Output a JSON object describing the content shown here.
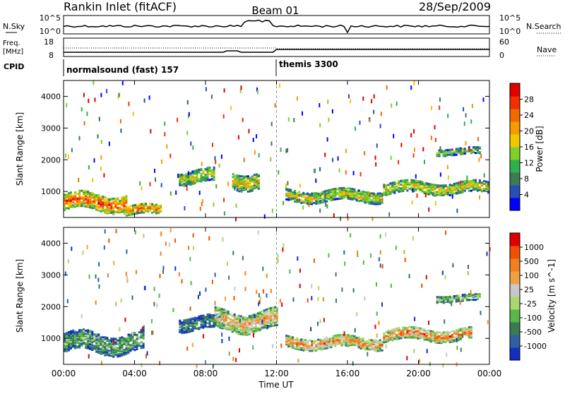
{
  "header": {
    "title": "Rankin Inlet (fitACF)",
    "beam": "Beam 01",
    "date": "28/Sep/2009"
  },
  "noise_panel": {
    "left_label": "N.Sky",
    "right_label": "N.Search",
    "left_ticks": [
      "10^5",
      "10^0"
    ],
    "right_ticks": [
      "10^5",
      "10^0"
    ]
  },
  "freq_panel": {
    "left_label_line1": "Freq.",
    "left_label_line2": "[MHz]",
    "right_label": "Nave",
    "left_ticks": [
      "18",
      "8"
    ],
    "right_ticks": [
      "60",
      "0"
    ]
  },
  "cpid_panel": {
    "label": "CPID",
    "program1": "normalsound (fast) 157",
    "program2": "themis 3300"
  },
  "x_axis": {
    "label": "Time UT",
    "ticks": [
      "00:00",
      "04:00",
      "08:00",
      "12:00",
      "16:00",
      "20:00",
      "00:00"
    ]
  },
  "chart_data": [
    {
      "type": "heatmap",
      "title": "Power",
      "ylabel": "Slant Range [km]",
      "xlabel": "Time UT",
      "ylim": [
        180,
        4500
      ],
      "yticks": [
        "1000",
        "2000",
        "3000",
        "4000"
      ],
      "colorbar_label": "Power [dB]",
      "colorbar_ticks": [
        "28",
        "24",
        "20",
        "16",
        "12",
        "8",
        "4"
      ],
      "colors": [
        "#0000ff",
        "#2a4db8",
        "#3c7a55",
        "#2fb04a",
        "#7fd02a",
        "#f0c800",
        "#f59a00",
        "#f06a00",
        "#f03000",
        "#e00000"
      ],
      "bands": [
        {
          "start_hour": 0.0,
          "end_hour": 3.5,
          "range_center": 700,
          "width": 500,
          "level": 0.85
        },
        {
          "start_hour": 3.5,
          "end_hour": 5.5,
          "range_center": 450,
          "width": 300,
          "level": 0.75
        },
        {
          "start_hour": 6.5,
          "end_hour": 8.5,
          "range_center": 1500,
          "width": 400,
          "level": 0.55
        },
        {
          "start_hour": 9.5,
          "end_hour": 11.0,
          "range_center": 1400,
          "width": 500,
          "level": 0.6
        },
        {
          "start_hour": 12.5,
          "end_hour": 18.0,
          "range_center": 900,
          "width": 350,
          "level": 0.55
        },
        {
          "start_hour": 18.0,
          "end_hour": 24.0,
          "range_center": 1150,
          "width": 350,
          "level": 0.6
        },
        {
          "start_hour": 21.0,
          "end_hour": 23.5,
          "range_center": 2300,
          "width": 200,
          "level": 0.45
        }
      ]
    },
    {
      "type": "heatmap",
      "title": "Velocity",
      "ylabel": "Slant Range [km]",
      "xlabel": "Time UT",
      "ylim": [
        180,
        4500
      ],
      "yticks": [
        "1000",
        "2000",
        "3000",
        "4000"
      ],
      "colorbar_label": "Velocity [m s^-1]",
      "colorbar_ticks": [
        "1000",
        "500",
        "100",
        "25",
        "-25",
        "-100",
        "-500",
        "-1000"
      ],
      "colors": [
        "#1030c0",
        "#3060a0",
        "#3a7a55",
        "#58b848",
        "#a8d870",
        "#c8c8c8",
        "#f0a040",
        "#f08020",
        "#f05000",
        "#e00000"
      ],
      "bands": [
        {
          "start_hour": 0.0,
          "end_hour": 4.5,
          "range_center": 900,
          "width": 600,
          "level": 0.35
        },
        {
          "start_hour": 6.5,
          "end_hour": 9.0,
          "range_center": 1500,
          "width": 400,
          "level": 0.25
        },
        {
          "start_hour": 8.5,
          "end_hour": 12.0,
          "range_center": 1600,
          "width": 600,
          "level": 0.7
        },
        {
          "start_hour": 12.5,
          "end_hour": 18.0,
          "range_center": 900,
          "width": 350,
          "level": 0.75
        },
        {
          "start_hour": 18.0,
          "end_hour": 23.0,
          "range_center": 1150,
          "width": 350,
          "level": 0.8
        },
        {
          "start_hour": 21.0,
          "end_hour": 23.5,
          "range_center": 2300,
          "width": 200,
          "level": 0.45
        }
      ]
    }
  ]
}
